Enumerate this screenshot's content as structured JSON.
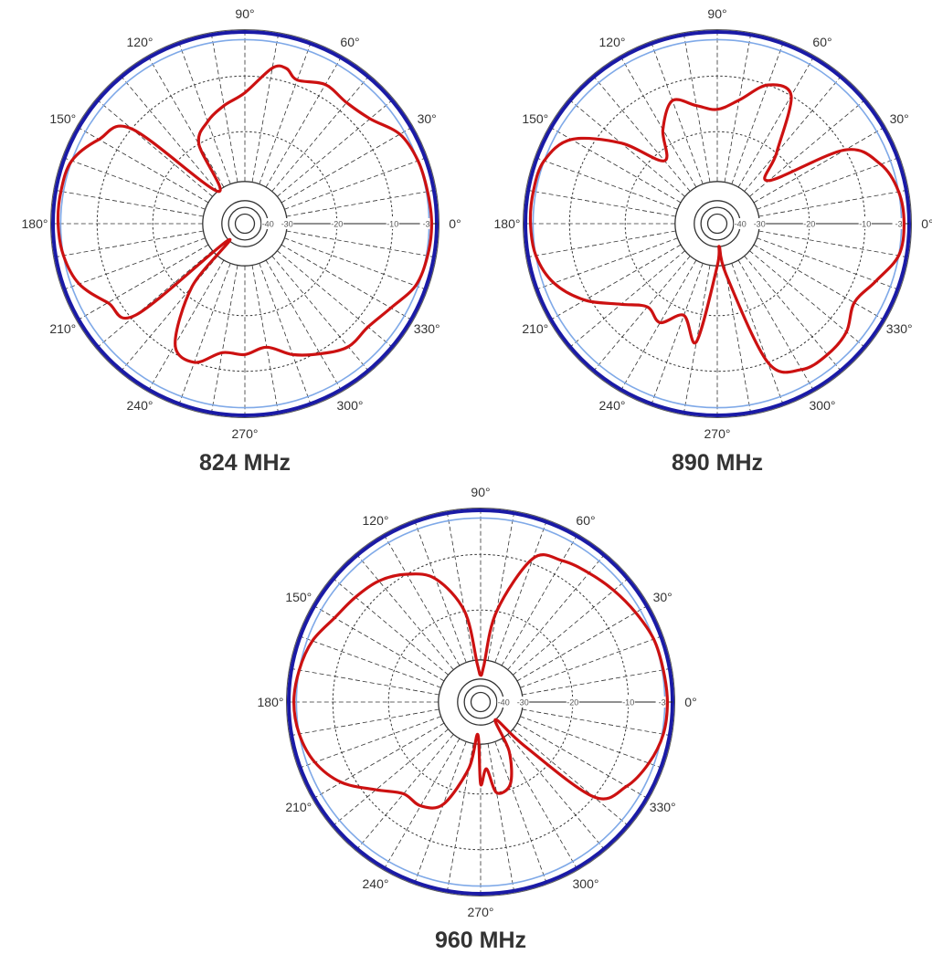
{
  "chart_data": [
    {
      "type": "polar",
      "title": "824 MHz",
      "angle_labels": [
        "0°",
        "30°",
        "60°",
        "90°",
        "120°",
        "150°",
        "180°",
        "210°",
        "240°",
        "270°",
        "300°",
        "330°"
      ],
      "ring_labels": [
        "-3",
        "-10",
        "-20",
        "-30",
        "-40"
      ],
      "r_ticks_db": [
        -3,
        -10,
        -20,
        -30,
        -40
      ],
      "r_range_db": [
        -40,
        0
      ],
      "colors": {
        "pattern": "#cc1111",
        "outer_ring": "#1a1aa6",
        "inner_ring": "#7fa9e8",
        "grid": "#333333"
      },
      "series": [
        {
          "angles_deg": [
            0,
            10,
            20,
            30,
            40,
            50,
            60,
            70,
            75,
            80,
            90,
            100,
            110,
            120,
            130,
            140,
            150,
            160,
            170,
            180,
            190,
            200,
            210,
            220,
            225,
            230,
            240,
            250,
            260,
            270,
            280,
            290,
            300,
            310,
            320,
            330,
            340,
            350
          ],
          "values_db": [
            -2,
            -2.5,
            -3,
            -4,
            -7,
            -8,
            -7.5,
            -9,
            -7.5,
            -8,
            -13,
            -15,
            -17,
            -20,
            -30,
            -10,
            -6,
            -3,
            -2,
            -2,
            -3,
            -4.5,
            -8,
            -11,
            -40,
            -22,
            -11.5,
            -10,
            -13,
            -13,
            -14,
            -11.5,
            -9.5,
            -7.5,
            -7.5,
            -6,
            -3.5,
            -2.5
          ]
        }
      ]
    },
    {
      "type": "polar",
      "title": "890 MHz",
      "angle_labels": [
        "0°",
        "30°",
        "60°",
        "90°",
        "120°",
        "150°",
        "180°",
        "210°",
        "240°",
        "270°",
        "300°",
        "330°"
      ],
      "ring_labels": [
        "-3",
        "-10",
        "-20",
        "-30",
        "-40"
      ],
      "r_ticks_db": [
        -3,
        -10,
        -20,
        -30,
        -40
      ],
      "r_range_db": [
        -40,
        0
      ],
      "colors": {
        "pattern": "#cc1111",
        "outer_ring": "#1a1aa6",
        "inner_ring": "#7fa9e8",
        "grid": "#333333"
      },
      "series": [
        {
          "angles_deg": [
            0,
            10,
            20,
            30,
            40,
            50,
            60,
            70,
            80,
            90,
            100,
            110,
            120,
            130,
            140,
            150,
            160,
            170,
            180,
            190,
            200,
            210,
            220,
            230,
            240,
            250,
            260,
            270,
            275,
            280,
            290,
            300,
            310,
            320,
            330,
            340,
            350
          ],
          "values_db": [
            -2,
            -3,
            -5,
            -10,
            -25,
            -20,
            -10,
            -10,
            -14,
            -16,
            -15,
            -13,
            -17,
            -22,
            -14,
            -6,
            -3,
            -2,
            -2,
            -3,
            -5,
            -9,
            -14,
            -17,
            -16,
            -19,
            -15,
            -30,
            -40,
            -28,
            -10,
            -6,
            -5.5,
            -6,
            -8,
            -6,
            -3
          ]
        }
      ]
    },
    {
      "type": "polar",
      "title": "960 MHz",
      "angle_labels": [
        "0°",
        "30°",
        "60°",
        "90°",
        "120°",
        "150°",
        "180°",
        "210°",
        "240°",
        "270°",
        "300°",
        "330°"
      ],
      "ring_labels": [
        "-3",
        "-10",
        "-20",
        "-30",
        "-40"
      ],
      "r_ticks_db": [
        -3,
        -10,
        -20,
        -30,
        -40
      ],
      "r_range_db": [
        -40,
        0
      ],
      "colors": {
        "pattern": "#cc1111",
        "outer_ring": "#1a1aa6",
        "inner_ring": "#7fa9e8",
        "grid": "#333333"
      },
      "series": [
        {
          "angles_deg": [
            0,
            10,
            20,
            30,
            40,
            50,
            60,
            70,
            80,
            85,
            90,
            95,
            100,
            110,
            120,
            130,
            140,
            150,
            160,
            170,
            180,
            190,
            200,
            210,
            220,
            230,
            240,
            250,
            260,
            265,
            270,
            275,
            280,
            290,
            300,
            310,
            315,
            320,
            330,
            340,
            350
          ],
          "values_db": [
            -2,
            -2.5,
            -3,
            -4,
            -5,
            -6,
            -7,
            -9,
            -20,
            -33,
            -38,
            -32,
            -20,
            -13,
            -10,
            -8,
            -7,
            -6,
            -4,
            -3,
            -2,
            -3,
            -4.5,
            -7.5,
            -12,
            -15,
            -15,
            -17,
            -25,
            -35,
            -22,
            -25,
            -20,
            -21,
            -27,
            -40,
            -26,
            -10,
            -6,
            -4,
            -2.5
          ]
        }
      ]
    }
  ]
}
